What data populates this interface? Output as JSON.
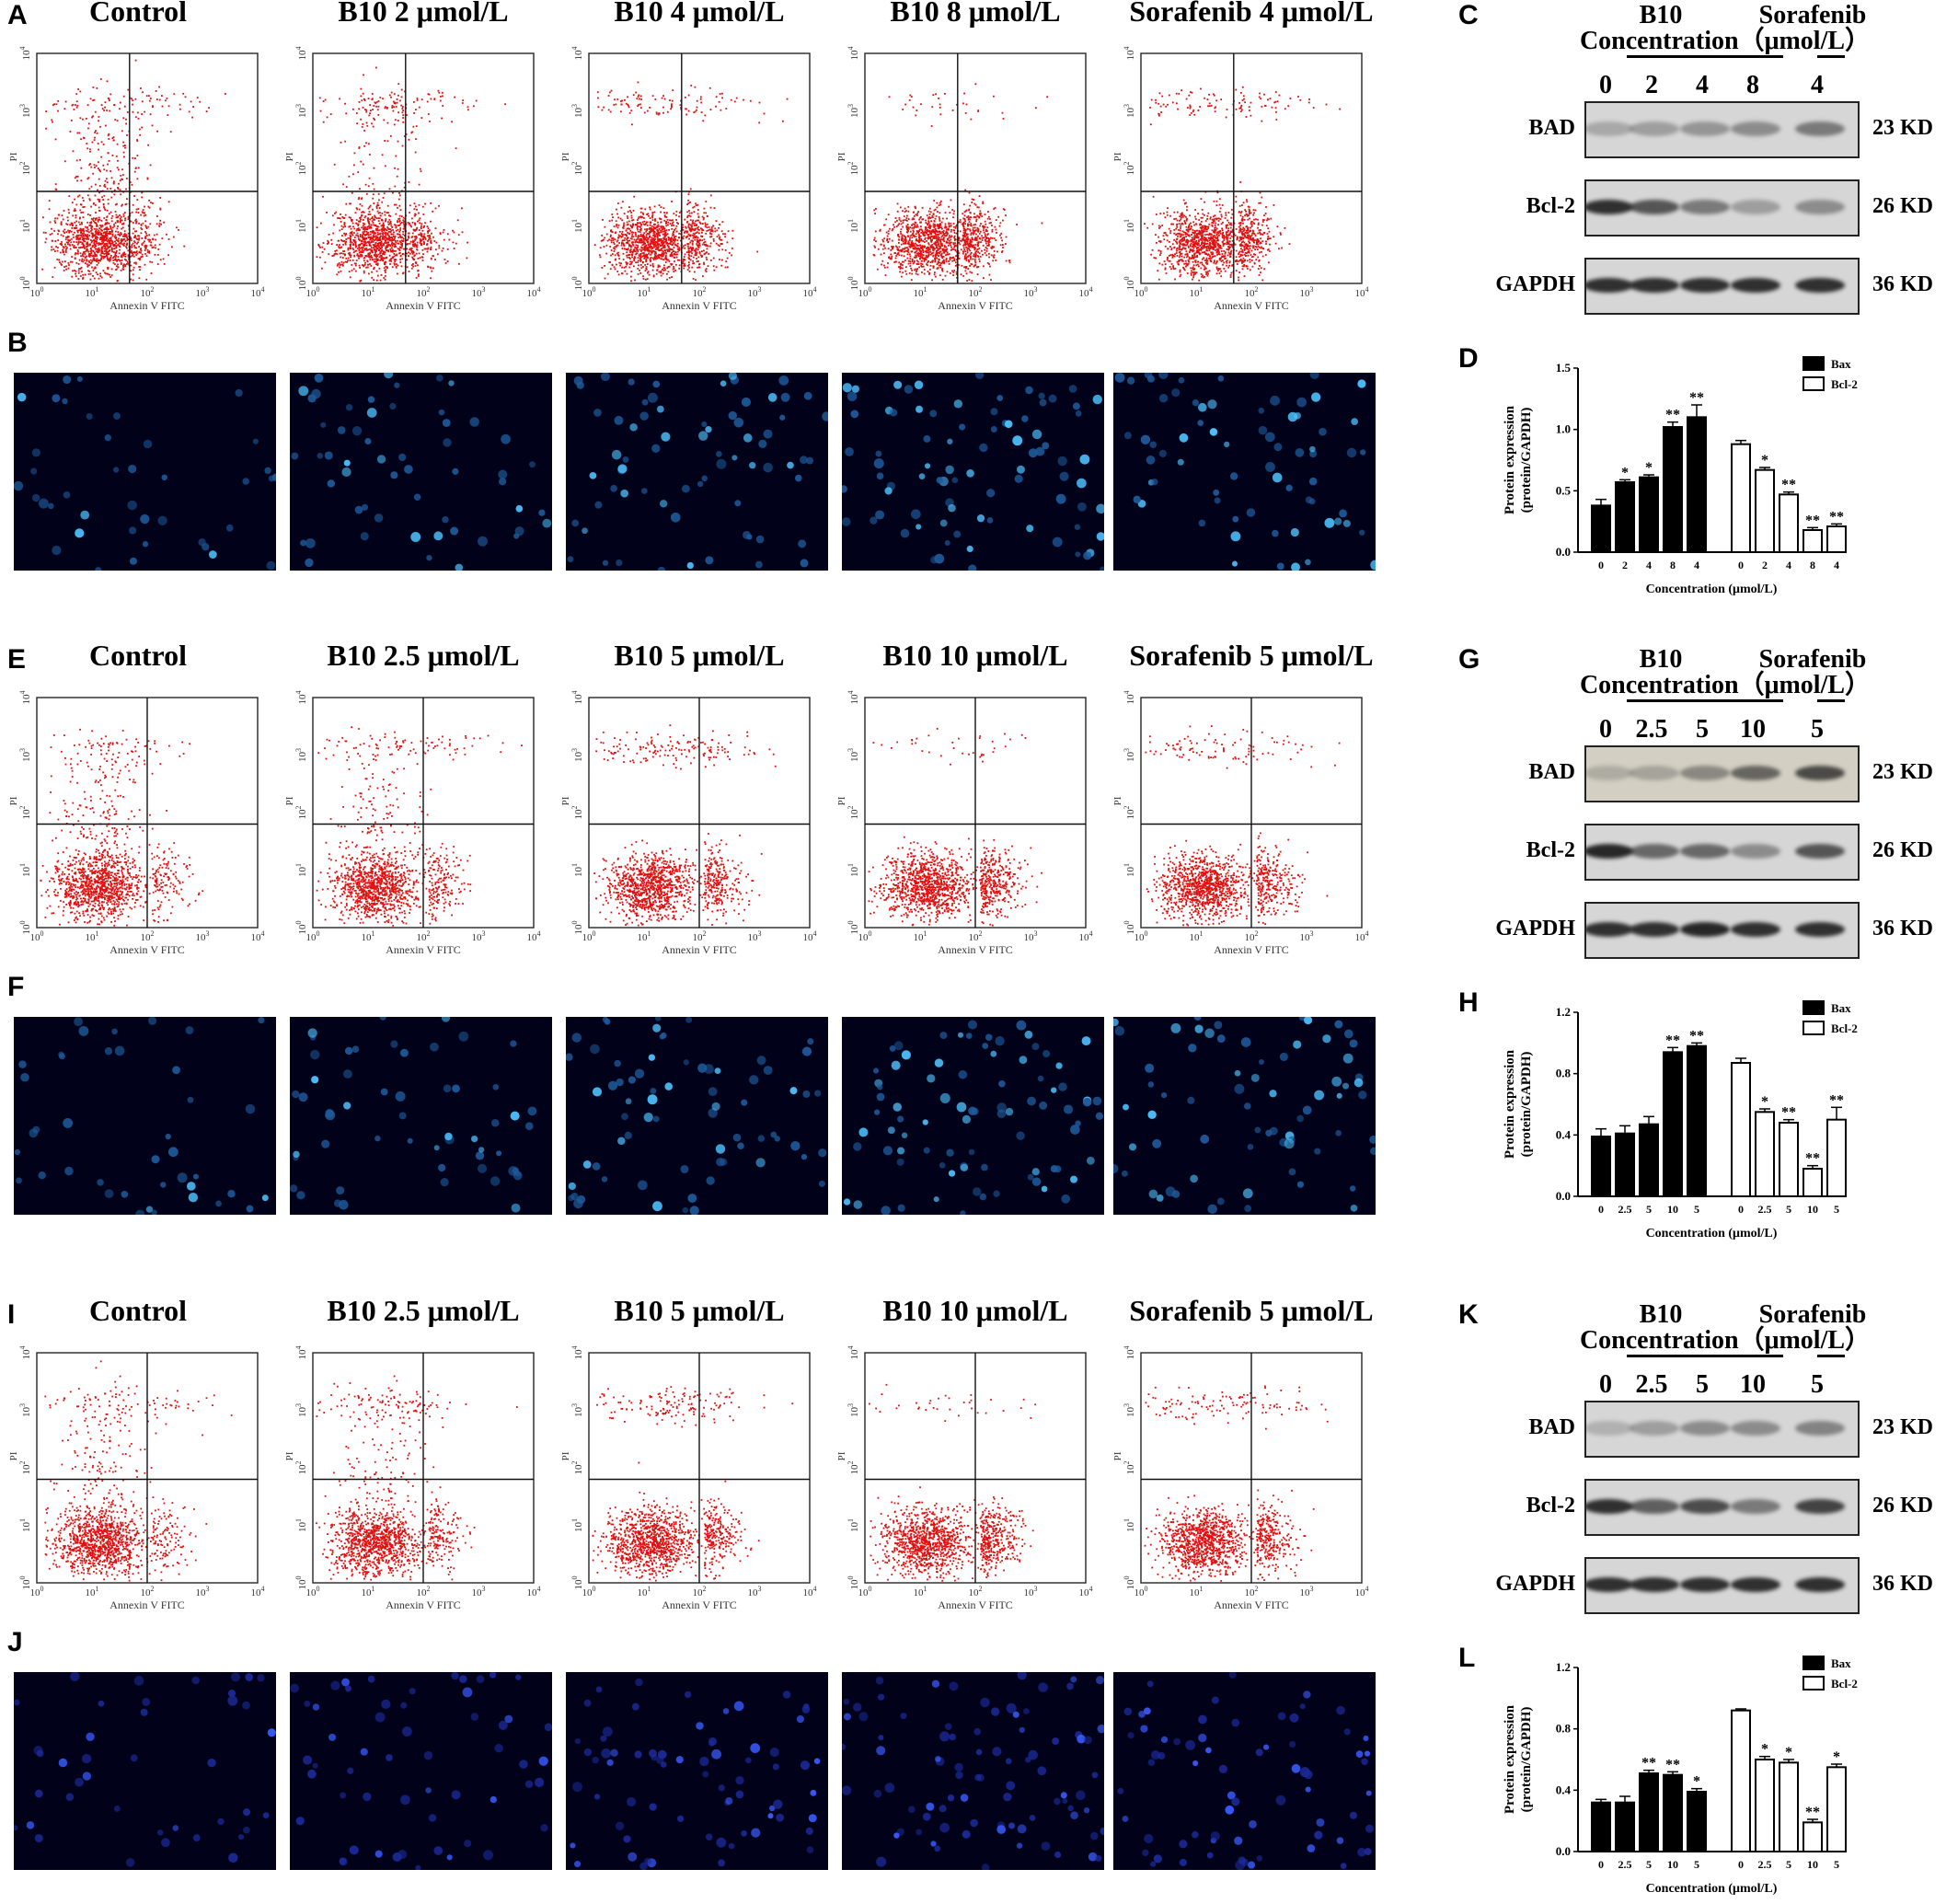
{
  "rows": [
    {
      "flow_label": "A",
      "micro_label": "B",
      "blot_label": "C",
      "chart_label": "D",
      "titles": [
        "Control",
        "B10 2 μmol/L",
        "B10 4 μmol/L",
        "B10 8 μmol/L",
        "Sorafenib 4 μmol/L"
      ],
      "flow_xlabel": "Annexin V FITC",
      "flow_ylabel": "PI",
      "blot": {
        "b10": "B10",
        "sorafenib": "Sorafenib",
        "concentration": "Concentration（μmol/L）",
        "lanes": [
          "0",
          "2",
          "4",
          "8",
          "4"
        ],
        "proteins": [
          "BAD",
          "Bcl-2",
          "GAPDH"
        ],
        "sizes": [
          "23 KD",
          "26 KD",
          "36 KD"
        ]
      },
      "chart_data": {
        "type": "bar",
        "ylabel_line1": "Protein expression",
        "ylabel_line2": "(protein/GAPDH)",
        "xlabel": "Concentration (μmol/L)",
        "yticks": [
          "0.0",
          "0.5",
          "1.0",
          "1.5"
        ],
        "ylim": [
          0,
          1.5
        ],
        "categories": [
          "0",
          "2",
          "4",
          "8",
          "4"
        ],
        "legend": [
          "Bax",
          "Bcl-2"
        ],
        "series": [
          {
            "name": "Bax",
            "values": [
              0.38,
              0.57,
              0.61,
              1.02,
              1.1
            ],
            "errors": [
              0.05,
              0.02,
              0.02,
              0.04,
              0.1
            ],
            "marks": [
              "",
              "*",
              "*",
              "**",
              "**"
            ]
          },
          {
            "name": "Bcl-2",
            "values": [
              0.88,
              0.67,
              0.47,
              0.18,
              0.21
            ],
            "errors": [
              0.03,
              0.02,
              0.02,
              0.02,
              0.02
            ],
            "marks": [
              "",
              "*",
              "**",
              "**",
              "**"
            ]
          }
        ]
      }
    },
    {
      "flow_label": "E",
      "micro_label": "F",
      "blot_label": "G",
      "chart_label": "H",
      "titles": [
        "Control",
        "B10 2.5 μmol/L",
        "B10 5 μmol/L",
        "B10 10 μmol/L",
        "Sorafenib 5 μmol/L"
      ],
      "flow_xlabel": "Annexin V FITC",
      "flow_ylabel": "PI",
      "blot": {
        "b10": "B10",
        "sorafenib": "Sorafenib",
        "concentration": "Concentration（μmol/L）",
        "lanes": [
          "0",
          "2.5",
          "5",
          "10",
          "5"
        ],
        "proteins": [
          "BAD",
          "Bcl-2",
          "GAPDH"
        ],
        "sizes": [
          "23 KD",
          "26 KD",
          "36 KD"
        ]
      },
      "chart_data": {
        "type": "bar",
        "ylabel_line1": "Protein expression",
        "ylabel_line2": "(protein/GAPDH)",
        "xlabel": "Concentration (μmol/L)",
        "yticks": [
          "0.0",
          "0.4",
          "0.8",
          "1.2"
        ],
        "ylim": [
          0,
          1.2
        ],
        "categories": [
          "0",
          "2.5",
          "5",
          "10",
          "5"
        ],
        "legend": [
          "Bax",
          "Bcl-2"
        ],
        "series": [
          {
            "name": "Bax",
            "values": [
              0.39,
              0.41,
              0.47,
              0.94,
              0.98
            ],
            "errors": [
              0.05,
              0.05,
              0.05,
              0.03,
              0.02
            ],
            "marks": [
              "",
              "",
              "",
              "**",
              "**"
            ]
          },
          {
            "name": "Bcl-2",
            "values": [
              0.87,
              0.55,
              0.48,
              0.18,
              0.5
            ],
            "errors": [
              0.03,
              0.02,
              0.02,
              0.02,
              0.08
            ],
            "marks": [
              "",
              "*",
              "**",
              "**",
              "**"
            ]
          }
        ]
      }
    },
    {
      "flow_label": "I",
      "micro_label": "J",
      "blot_label": "K",
      "chart_label": "L",
      "titles": [
        "Control",
        "B10 2.5 μmol/L",
        "B10 5 μmol/L",
        "B10 10 μmol/L",
        "Sorafenib 5 μmol/L"
      ],
      "flow_xlabel": "Annexin V FITC",
      "flow_ylabel": "PI",
      "blot": {
        "b10": "B10",
        "sorafenib": "Sorafenib",
        "concentration": "Concentration（μmol/L）",
        "lanes": [
          "0",
          "2.5",
          "5",
          "10",
          "5"
        ],
        "proteins": [
          "BAD",
          "Bcl-2",
          "GAPDH"
        ],
        "sizes": [
          "23 KD",
          "26 KD",
          "36 KD"
        ]
      },
      "chart_data": {
        "type": "bar",
        "ylabel_line1": "Protein expression",
        "ylabel_line2": "(protein/GAPDH)",
        "xlabel": "Concentration (μmol/L)",
        "yticks": [
          "0.0",
          "0.4",
          "0.8",
          "1.2"
        ],
        "ylim": [
          0,
          1.2
        ],
        "categories": [
          "0",
          "2.5",
          "5",
          "10",
          "5"
        ],
        "legend": [
          "Bax",
          "Bcl-2"
        ],
        "series": [
          {
            "name": "Bax",
            "values": [
              0.32,
              0.32,
              0.51,
              0.5,
              0.39
            ],
            "errors": [
              0.02,
              0.04,
              0.02,
              0.02,
              0.02
            ],
            "marks": [
              "",
              "",
              "**",
              "**",
              "*"
            ]
          },
          {
            "name": "Bcl-2",
            "values": [
              0.92,
              0.6,
              0.58,
              0.19,
              0.55
            ],
            "errors": [
              0.01,
              0.02,
              0.02,
              0.02,
              0.02
            ],
            "marks": [
              "",
              "*",
              "*",
              "**",
              "*"
            ]
          }
        ]
      }
    }
  ]
}
